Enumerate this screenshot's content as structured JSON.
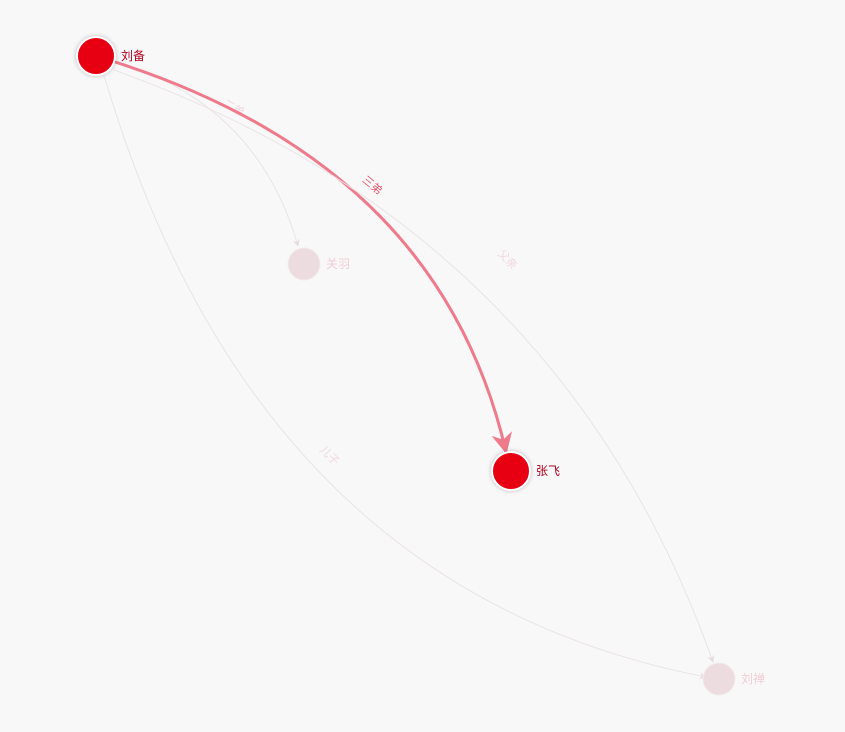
{
  "graph": {
    "nodes": [
      {
        "id": "liubei",
        "label": "刘备",
        "active": true
      },
      {
        "id": "guanyu",
        "label": "关羽",
        "active": false
      },
      {
        "id": "zhangfei",
        "label": "张飞",
        "active": true
      },
      {
        "id": "liushan",
        "label": "刘禅",
        "active": false
      }
    ],
    "edges": [
      {
        "id": "e1",
        "source": "liubei",
        "target": "guanyu",
        "label": "二弟",
        "active": false
      },
      {
        "id": "e2",
        "source": "liubei",
        "target": "zhangfei",
        "label": "三弟",
        "active": true
      },
      {
        "id": "e3",
        "source": "liubei",
        "target": "liushan",
        "label": "儿子",
        "active": false
      },
      {
        "id": "e4",
        "source": "liushan",
        "target": "liubei",
        "label": "父亲",
        "active": false
      }
    ]
  },
  "colors": {
    "background": "#f8f8f8",
    "node_active": "#e60012",
    "node_inactive": "#ecdce0",
    "node_border": "#ffffff",
    "label_active": "#b0001f",
    "label_inactive": "#f2cdd6",
    "edge_active": "#ee7a8c",
    "edge_inactive": "#ebe3e5",
    "edge_label_active": "#e3586f",
    "edge_label_inactive": "#f1d6dc"
  }
}
